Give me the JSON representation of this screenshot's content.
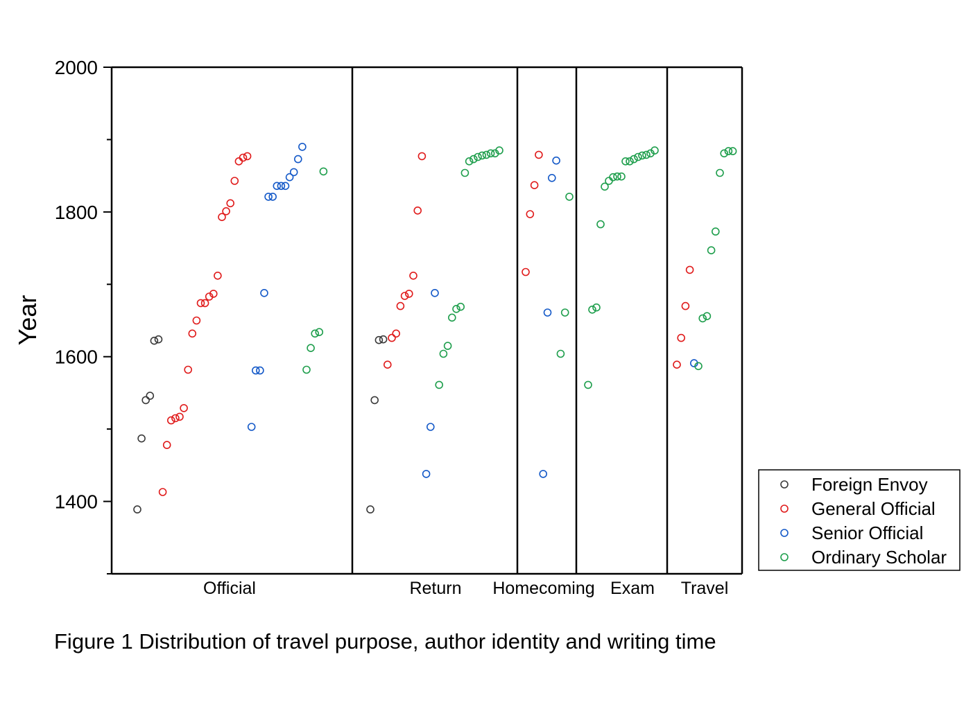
{
  "caption": "Figure 1 Distribution of travel purpose, author identity and writing time",
  "chart_data": {
    "type": "scatter",
    "ylabel": "Year",
    "ylim": [
      1300,
      2000
    ],
    "yticks": [
      1400,
      1600,
      1800,
      2000
    ],
    "grid": false,
    "legend_position": "bottom-right, outside plot",
    "panels": [
      "Official",
      "Return",
      "Homecoming",
      "Exam",
      "Travel"
    ],
    "colors": {
      "Foreign Envoy": "#3a3a3a",
      "General Official": "#e01b1b",
      "Senior Official": "#1459c8",
      "Ordinary Scholar": "#1e9e4c"
    },
    "series": [
      {
        "name": "Foreign Envoy",
        "points": [
          {
            "category": "Official",
            "values": [
              1389,
              1487,
              1540,
              1546,
              1622,
              1624
            ]
          },
          {
            "category": "Return",
            "values": [
              1389,
              1540,
              1623,
              1624
            ]
          }
        ]
      },
      {
        "name": "General Official",
        "points": [
          {
            "category": "Official",
            "values": [
              1413,
              1478,
              1512,
              1515,
              1517,
              1529,
              1582,
              1632,
              1650,
              1674,
              1674,
              1683,
              1687,
              1712,
              1793,
              1801,
              1812,
              1843,
              1870,
              1875,
              1877
            ]
          },
          {
            "category": "Return",
            "values": [
              1589,
              1626,
              1632,
              1670,
              1684,
              1687,
              1712,
              1802,
              1877
            ]
          },
          {
            "category": "Homecoming",
            "values": [
              1717,
              1797,
              1837,
              1879
            ]
          },
          {
            "category": "Travel",
            "values": [
              1589,
              1626,
              1670,
              1720
            ]
          }
        ]
      },
      {
        "name": "Senior Official",
        "points": [
          {
            "category": "Official",
            "values": [
              1503,
              1581,
              1581,
              1688,
              1821,
              1821,
              1836,
              1836,
              1836,
              1848,
              1855,
              1873,
              1890
            ]
          },
          {
            "category": "Return",
            "values": [
              1438,
              1503,
              1688
            ]
          },
          {
            "category": "Homecoming",
            "values": [
              1438,
              1661,
              1847,
              1871
            ]
          },
          {
            "category": "Travel",
            "values": [
              1591
            ]
          }
        ]
      },
      {
        "name": "Ordinary Scholar",
        "points": [
          {
            "category": "Official",
            "values": [
              1582,
              1612,
              1632,
              1634,
              1856
            ]
          },
          {
            "category": "Return",
            "values": [
              1561,
              1604,
              1615,
              1654,
              1666,
              1669,
              1854,
              1870,
              1873,
              1876,
              1878,
              1879,
              1881,
              1881,
              1885
            ]
          },
          {
            "category": "Homecoming",
            "values": [
              1604,
              1661,
              1821
            ]
          },
          {
            "category": "Exam",
            "values": [
              1561,
              1665,
              1668,
              1783,
              1835,
              1843,
              1848,
              1849,
              1849,
              1870,
              1870,
              1873,
              1876,
              1878,
              1879,
              1881,
              1885
            ]
          },
          {
            "category": "Travel",
            "values": [
              1587,
              1653,
              1656,
              1747,
              1773,
              1854,
              1881,
              1884,
              1884
            ]
          }
        ]
      }
    ]
  }
}
